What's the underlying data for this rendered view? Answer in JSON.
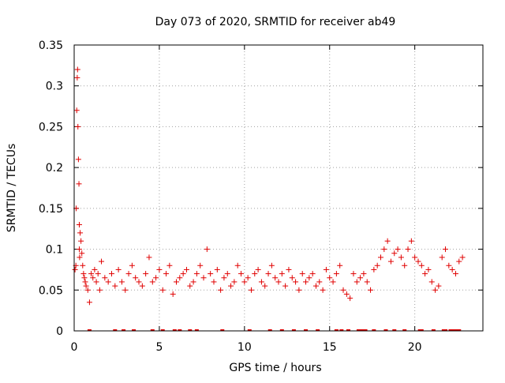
{
  "chart_data": {
    "type": "scatter",
    "title": "Day 073 of 2020, SRMTID for receiver ab49",
    "xlabel": "GPS time / hours",
    "ylabel": "SRMTID / TECUs",
    "xlim": [
      0,
      24
    ],
    "ylim": [
      0,
      0.35
    ],
    "xticks": [
      0,
      5,
      10,
      15,
      20
    ],
    "xtick_labels": [
      "0",
      "5",
      "10",
      "15",
      "20"
    ],
    "yticks": [
      0,
      0.05,
      0.1,
      0.15,
      0.2,
      0.25,
      0.3,
      0.35
    ],
    "ytick_labels": [
      "0",
      "0.05",
      "0.1",
      "0.15",
      "0.2",
      "0.25",
      "0.3",
      "0.35"
    ],
    "grid": true,
    "marker": "plus",
    "series_color": "#e00000",
    "series": [
      {
        "name": "SRMTID",
        "x": [
          0.05,
          0.1,
          0.12,
          0.15,
          0.18,
          0.2,
          0.22,
          0.25,
          0.28,
          0.3,
          0.3,
          0.32,
          0.35,
          0.4,
          0.45,
          0.5,
          0.55,
          0.6,
          0.65,
          0.7,
          0.8,
          0.9,
          1.0,
          1.1,
          1.2,
          1.3,
          1.4,
          1.5,
          1.6,
          1.8,
          2.0,
          2.2,
          2.4,
          2.6,
          2.8,
          3.0,
          3.2,
          3.4,
          3.6,
          3.8,
          4.0,
          4.2,
          4.4,
          4.6,
          4.8,
          5.0,
          5.2,
          5.4,
          5.6,
          5.8,
          6.0,
          6.2,
          6.4,
          6.6,
          6.8,
          7.0,
          7.2,
          7.4,
          7.6,
          7.8,
          8.0,
          8.2,
          8.4,
          8.6,
          8.8,
          9.0,
          9.2,
          9.4,
          9.6,
          9.8,
          10.0,
          10.2,
          10.4,
          10.6,
          10.8,
          11.0,
          11.2,
          11.4,
          11.6,
          11.8,
          12.0,
          12.2,
          12.4,
          12.6,
          12.8,
          13.0,
          13.2,
          13.4,
          13.6,
          13.8,
          14.0,
          14.2,
          14.4,
          14.6,
          14.8,
          15.0,
          15.2,
          15.4,
          15.6,
          15.8,
          16.0,
          16.2,
          16.4,
          16.6,
          16.8,
          17.0,
          17.2,
          17.4,
          17.6,
          17.8,
          18.0,
          18.2,
          18.4,
          18.6,
          18.8,
          19.0,
          19.2,
          19.4,
          19.6,
          19.8,
          20.0,
          20.2,
          20.4,
          20.6,
          20.8,
          21.0,
          21.2,
          21.4,
          21.6,
          21.8,
          22.0,
          22.2,
          22.4,
          22.6,
          22.8
        ],
        "y": [
          0.075,
          0.08,
          0.15,
          0.27,
          0.31,
          0.32,
          0.25,
          0.21,
          0.18,
          0.13,
          0.1,
          0.09,
          0.12,
          0.11,
          0.095,
          0.08,
          0.07,
          0.065,
          0.06,
          0.055,
          0.05,
          0.035,
          0.07,
          0.065,
          0.075,
          0.06,
          0.07,
          0.05,
          0.085,
          0.065,
          0.06,
          0.07,
          0.055,
          0.075,
          0.06,
          0.05,
          0.07,
          0.08,
          0.065,
          0.06,
          0.055,
          0.07,
          0.09,
          0.06,
          0.065,
          0.075,
          0.05,
          0.07,
          0.08,
          0.045,
          0.06,
          0.065,
          0.07,
          0.075,
          0.055,
          0.06,
          0.07,
          0.08,
          0.065,
          0.1,
          0.07,
          0.06,
          0.075,
          0.05,
          0.065,
          0.07,
          0.055,
          0.06,
          0.08,
          0.07,
          0.06,
          0.065,
          0.05,
          0.07,
          0.075,
          0.06,
          0.055,
          0.07,
          0.08,
          0.065,
          0.06,
          0.07,
          0.055,
          0.075,
          0.065,
          0.06,
          0.05,
          0.07,
          0.06,
          0.065,
          0.07,
          0.055,
          0.06,
          0.05,
          0.075,
          0.065,
          0.06,
          0.07,
          0.08,
          0.05,
          0.045,
          0.04,
          0.07,
          0.06,
          0.065,
          0.07,
          0.06,
          0.05,
          0.075,
          0.08,
          0.09,
          0.1,
          0.11,
          0.085,
          0.095,
          0.1,
          0.09,
          0.08,
          0.1,
          0.11,
          0.09,
          0.085,
          0.08,
          0.07,
          0.075,
          0.06,
          0.05,
          0.055,
          0.09,
          0.1,
          0.08,
          0.075,
          0.07,
          0.085,
          0.09
        ]
      }
    ],
    "zero_markers_x": [
      0.9,
      2.4,
      2.9,
      3.5,
      4.6,
      5.2,
      5.9,
      6.2,
      6.8,
      7.2,
      8.7,
      10.3,
      11.5,
      12.2,
      12.9,
      13.6,
      14.3,
      15.4,
      15.7,
      16.1,
      16.7,
      16.9,
      17.1,
      17.6,
      18.3,
      18.8,
      19.4,
      20.3,
      20.4,
      21.1,
      21.7,
      21.8,
      22.1,
      22.2,
      22.3,
      22.5,
      22.6
    ]
  }
}
